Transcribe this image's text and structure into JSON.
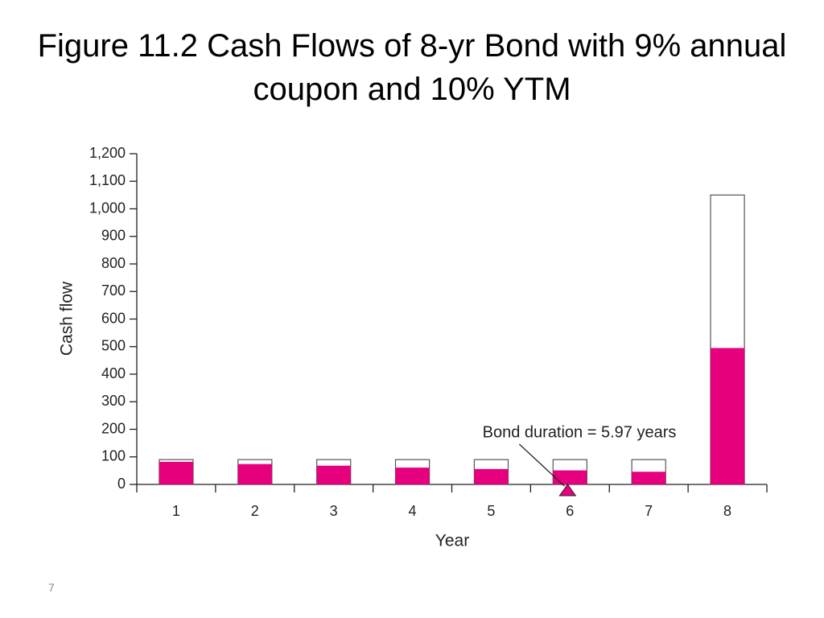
{
  "title": "Figure 11.2 Cash Flows of 8-yr Bond with 9% annual coupon and 10% YTM",
  "slide_number": "7",
  "chart_data": {
    "type": "bar",
    "x": [
      1,
      2,
      3,
      4,
      5,
      6,
      7,
      8
    ],
    "xticks": [
      1,
      2,
      3,
      4,
      5,
      6,
      7,
      8
    ],
    "xlim": [
      0.5,
      8.5
    ],
    "series": [
      {
        "color": "#ffffff",
        "values": [
          90,
          90,
          90,
          90,
          90,
          90,
          90,
          1050
        ]
      },
      {
        "color": "#e6007e",
        "values": [
          82,
          74,
          68,
          61,
          56,
          51,
          46,
          495
        ]
      }
    ],
    "ylim": [
      0,
      1200
    ],
    "yticks": [
      0,
      100,
      200,
      300,
      400,
      500,
      600,
      700,
      800,
      900,
      {
        "value": 1000,
        "label": "1,000"
      },
      {
        "value": 1100,
        "label": "1,100"
      },
      {
        "value": 1200,
        "label": "1,200"
      }
    ],
    "xlabel": "Year",
    "ylabel": "Cash flow",
    "annotations": [
      {
        "text": "Bond duration = 5.97 years",
        "x": 5.97
      }
    ]
  }
}
